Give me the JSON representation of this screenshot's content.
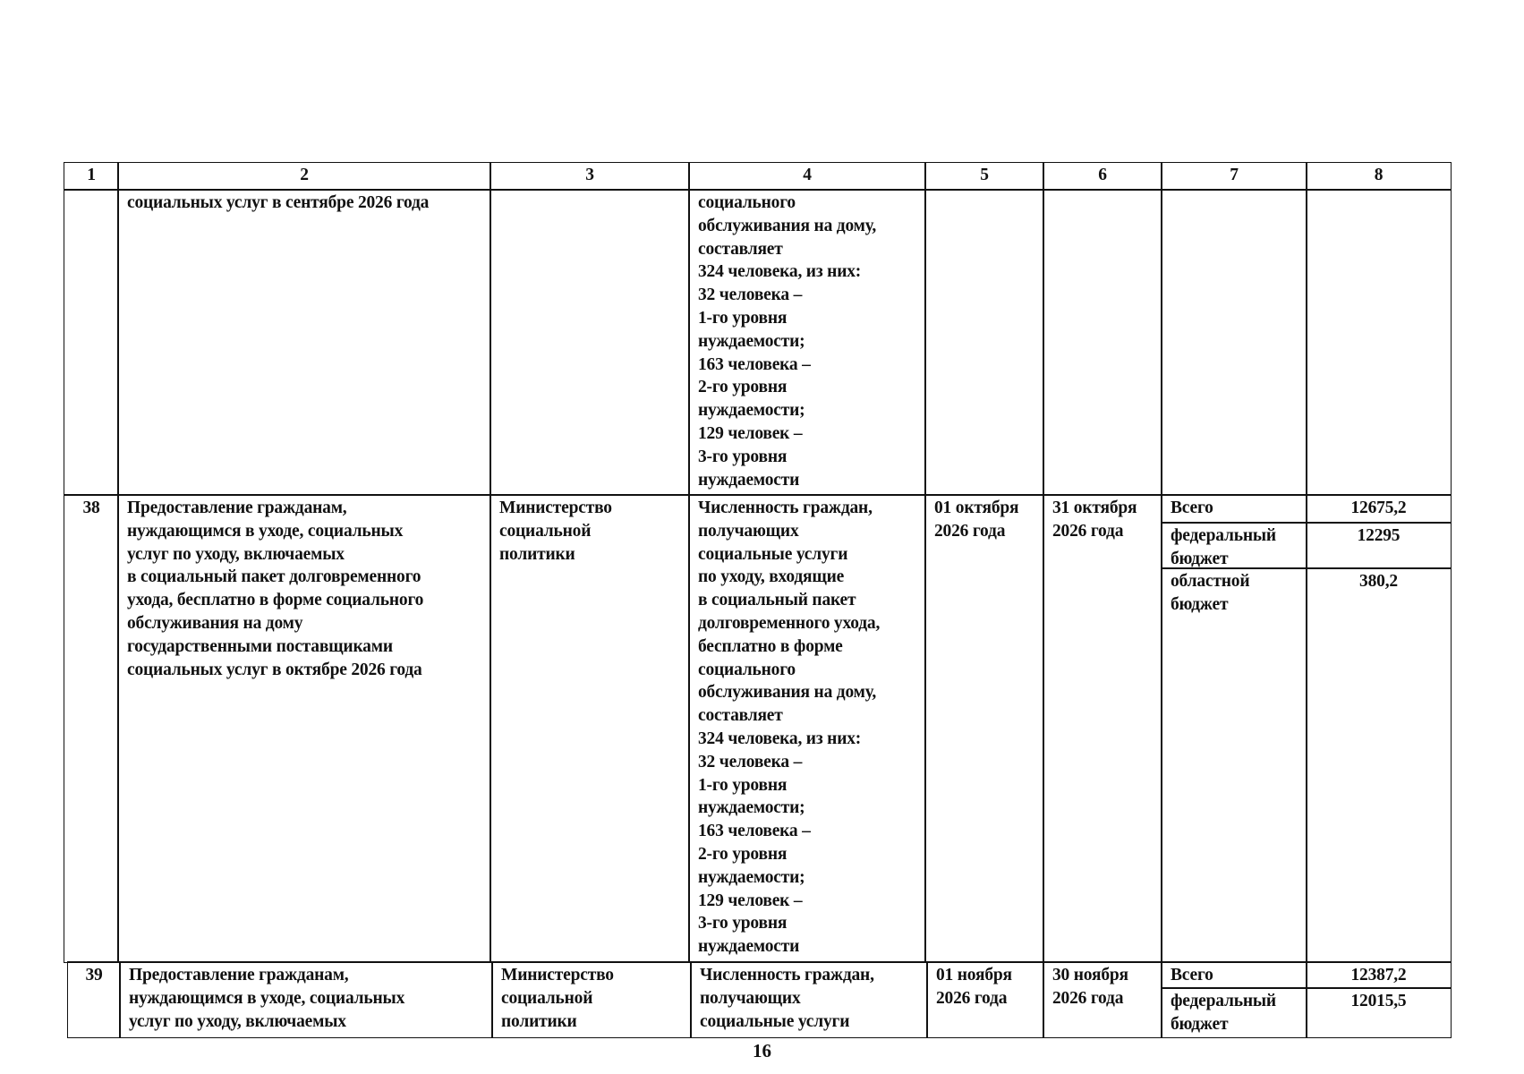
{
  "header": [
    "1",
    "2",
    "3",
    "4",
    "5",
    "6",
    "7",
    "8"
  ],
  "rows": [
    {
      "num": "",
      "event": "социальных услуг в сентябре 2026 года",
      "executor": "",
      "indicator": "социального\nобслуживания на дому,\nсоставляет\n324 человека, из них:\n32 человека –\n1-го уровня\nнуждаемости;\n163 человека –\n2-го уровня\nнуждаемости;\n129 человек –\n3-го уровня\nнуждаемости",
      "start": "",
      "end": "",
      "funding": []
    },
    {
      "num": "38",
      "event": "Предоставление гражданам,\nнуждающимся в уходе, социальных\nуслуг по уходу, включаемых\nв социальный пакет долговременного\nухода, бесплатно в форме социального\nобслуживания на дому\nгосударственными поставщиками\nсоциальных услуг в октябре 2026 года",
      "executor": "Министерство\nсоциальной\nполитики",
      "indicator": "Численность граждан,\nполучающих\nсоциальные услуги\nпо уходу, входящие\nв социальный пакет\nдолговременного ухода,\nбесплатно в форме\nсоциального\nобслуживания на дому,\nсоставляет\n324 человека, из них:\n32 человека –\n1-го уровня\nнуждаемости;\n163 человека –\n2-го уровня\nнуждаемости;\n129 человек –\n3-го уровня\nнуждаемости",
      "start": "01 октября\n2026 года",
      "end": "31 октября\n2026 года",
      "funding": [
        {
          "source": "Всего",
          "amount": "12675,2"
        },
        {
          "source": "федеральный\nбюджет",
          "amount": "12295"
        },
        {
          "source": "областной\nбюджет",
          "amount": "380,2"
        }
      ]
    },
    {
      "num": "39",
      "event": "Предоставление гражданам,\nнуждающимся в уходе, социальных\nуслуг по уходу, включаемых",
      "executor": "Министерство\nсоциальной\nполитики",
      "indicator": "Численность граждан,\nполучающих\nсоциальные услуги",
      "start": "01 ноября\n2026 года",
      "end": "30 ноября\n2026 года",
      "funding": [
        {
          "source": "Всего",
          "amount": "12387,2"
        },
        {
          "source": "федеральный\nбюджет",
          "amount": "12015,5"
        }
      ]
    }
  ],
  "page_number": "16"
}
